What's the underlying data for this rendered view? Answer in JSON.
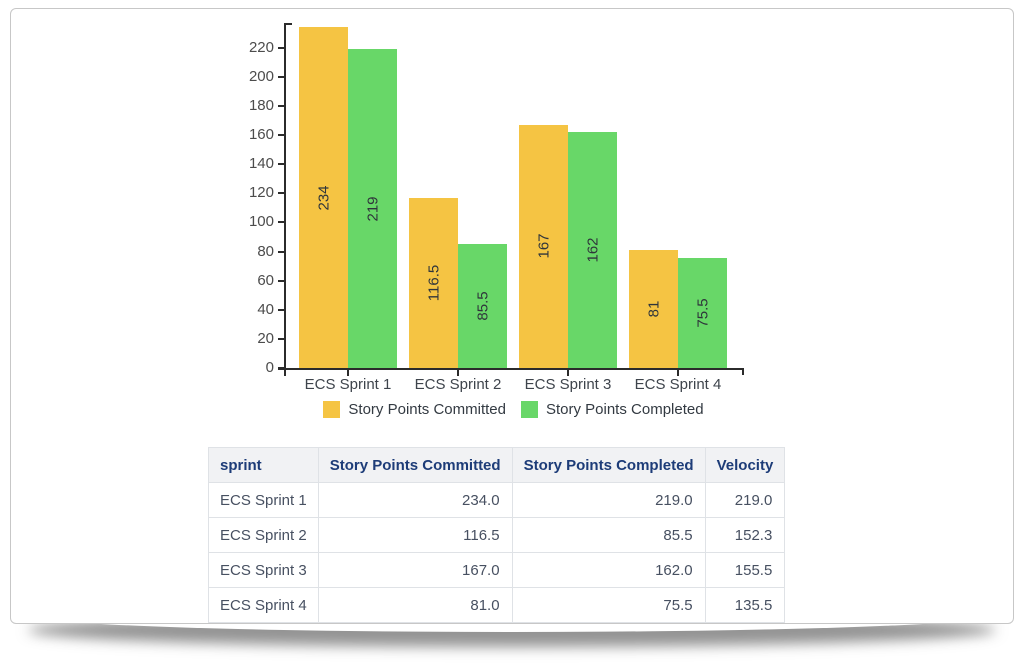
{
  "chart_data": {
    "type": "bar",
    "title": "",
    "xlabel": "",
    "ylabel": "",
    "categories": [
      "ECS Sprint 1",
      "ECS Sprint 2",
      "ECS Sprint 3",
      "ECS Sprint 4"
    ],
    "series": [
      {
        "name": "Story Points Committed",
        "color": "#F5C443",
        "values": [
          234,
          116.5,
          167,
          81
        ]
      },
      {
        "name": "Story Points Completed",
        "color": "#68D768",
        "values": [
          219,
          85.5,
          162,
          75.5
        ]
      }
    ],
    "ylim": [
      0,
      237
    ],
    "yticks": [
      0,
      20,
      40,
      60,
      80,
      100,
      120,
      140,
      160,
      180,
      200,
      220
    ],
    "grid": false,
    "legend_position": "bottom",
    "bar_value_labels_rotated": true
  },
  "table": {
    "columns": [
      "sprint",
      "Story Points Committed",
      "Story Points Completed",
      "Velocity"
    ],
    "rows": [
      [
        "ECS Sprint 1",
        "234.0",
        "219.0",
        "219.0"
      ],
      [
        "ECS Sprint 2",
        "116.5",
        "85.5",
        "152.3"
      ],
      [
        "ECS Sprint 3",
        "167.0",
        "162.0",
        "155.5"
      ],
      [
        "ECS Sprint 4",
        "81.0",
        "75.5",
        "135.5"
      ]
    ]
  },
  "colors": {
    "committed_bar": "#F5C443",
    "completed_bar": "#68D768",
    "table_header_text": "#1d3c78",
    "table_header_bg": "#f1f2f4",
    "axis": "#2b2b2b"
  }
}
